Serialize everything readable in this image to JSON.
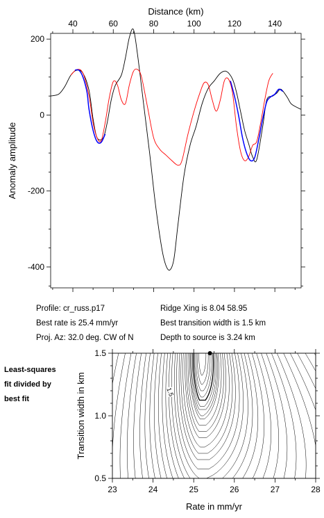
{
  "chart_data": [
    {
      "type": "line",
      "xlabel": "Distance (km)",
      "ylabel": "Anomaly amplitude",
      "xlim": [
        29,
        153
      ],
      "ylim": [
        -455,
        215
      ],
      "xticks": [
        40,
        60,
        80,
        100,
        120,
        140
      ],
      "yticks": [
        200,
        0,
        -200,
        -400
      ],
      "grid": false,
      "series": [
        {
          "color": "#000000",
          "points": [
            [
              29,
              50
            ],
            [
              33,
              55
            ],
            [
              36,
              75
            ],
            [
              39,
              105
            ],
            [
              42,
              118
            ],
            [
              45,
              110
            ],
            [
              48,
              65
            ],
            [
              50,
              -10
            ],
            [
              52,
              -60
            ],
            [
              55,
              -60
            ],
            [
              57,
              -20
            ],
            [
              59,
              40
            ],
            [
              61,
              78
            ],
            [
              64,
              105
            ],
            [
              66,
              150
            ],
            [
              68,
              205
            ],
            [
              70,
              225
            ],
            [
              72,
              160
            ],
            [
              75,
              30
            ],
            [
              78,
              -100
            ],
            [
              81,
              -240
            ],
            [
              84,
              -350
            ],
            [
              86,
              -395
            ],
            [
              88,
              -408
            ],
            [
              90,
              -380
            ],
            [
              92,
              -290
            ],
            [
              95,
              -160
            ],
            [
              98,
              -80
            ],
            [
              101,
              -30
            ],
            [
              104,
              30
            ],
            [
              107,
              70
            ],
            [
              110,
              90
            ],
            [
              113,
              110
            ],
            [
              116,
              115
            ],
            [
              119,
              95
            ],
            [
              121,
              60
            ],
            [
              123,
              10
            ],
            [
              125,
              -40
            ],
            [
              127,
              -75
            ],
            [
              129,
              -110
            ],
            [
              131,
              -118
            ],
            [
              134,
              -30
            ],
            [
              136,
              40
            ],
            [
              139,
              50
            ],
            [
              141,
              58
            ],
            [
              143,
              68
            ],
            [
              146,
              48
            ],
            [
              148,
              30
            ],
            [
              151,
              20
            ],
            [
              153,
              15
            ]
          ]
        },
        {
          "color": "#ff0000",
          "points": [
            [
              39,
              105
            ],
            [
              42,
              120
            ],
            [
              45,
              110
            ],
            [
              48,
              50
            ],
            [
              50,
              -20
            ],
            [
              52,
              -60
            ],
            [
              54,
              -68
            ],
            [
              56,
              -20
            ],
            [
              58,
              45
            ],
            [
              60,
              88
            ],
            [
              62,
              80
            ],
            [
              64,
              40
            ],
            [
              66,
              30
            ],
            [
              68,
              80
            ],
            [
              70,
              115
            ],
            [
              72,
              120
            ],
            [
              74,
              100
            ],
            [
              77,
              20
            ],
            [
              80,
              -60
            ],
            [
              83,
              -90
            ],
            [
              86,
              -105
            ],
            [
              89,
              -120
            ],
            [
              92,
              -132
            ],
            [
              94,
              -120
            ],
            [
              97,
              -50
            ],
            [
              100,
              10
            ],
            [
              103,
              60
            ],
            [
              105,
              85
            ],
            [
              107,
              80
            ],
            [
              109,
              40
            ],
            [
              111,
              10
            ],
            [
              113,
              40
            ],
            [
              115,
              90
            ],
            [
              117,
              95
            ],
            [
              119,
              60
            ],
            [
              121,
              -30
            ],
            [
              123,
              -95
            ],
            [
              125,
              -120
            ],
            [
              127,
              -110
            ],
            [
              129,
              -80
            ],
            [
              131,
              -70
            ],
            [
              133,
              -20
            ],
            [
              135,
              40
            ],
            [
              137,
              90
            ],
            [
              139,
              110
            ]
          ]
        },
        {
          "color": "#0000ff",
          "points": [
            [
              41,
              118
            ],
            [
              43,
              118
            ],
            [
              45,
              100
            ],
            [
              47,
              60
            ],
            [
              48,
              15
            ],
            [
              50,
              -40
            ],
            [
              52,
              -70
            ],
            [
              54,
              -72
            ],
            [
              56,
              -50
            ]
          ]
        },
        {
          "color": "#0000ff",
          "points": [
            [
              118,
              90
            ],
            [
              120,
              50
            ],
            [
              122,
              0
            ],
            [
              124,
              -60
            ],
            [
              126,
              -100
            ],
            [
              128,
              -120
            ],
            [
              130,
              -112
            ],
            [
              132,
              -65
            ],
            [
              134,
              -10
            ],
            [
              136,
              35
            ],
            [
              138,
              48
            ],
            [
              140,
              55
            ],
            [
              142,
              68
            ],
            [
              144,
              62
            ]
          ]
        }
      ]
    },
    {
      "type": "contour",
      "xlabel": "Rate in mm/yr",
      "ylabel": "Transition width in km",
      "xlim": [
        23,
        28
      ],
      "ylim": [
        0.5,
        1.5
      ],
      "xticks": [
        23,
        24,
        25,
        26,
        27,
        28
      ],
      "yticks": [
        0.5,
        1.0,
        1.5
      ],
      "grid": false,
      "best_fit_point": [
        25.4,
        1.5
      ],
      "contour_label": "1.5"
    }
  ],
  "info": {
    "profile": "Profile: cr_russ.p17",
    "best_rate": "Best rate is 25.4 mm/yr",
    "proj_az": "Proj. Az: 32.0 deg. CW of N",
    "ridge_xing": "Ridge Xing is 8.04 58.95",
    "best_width": "Best transition width is 1.5 km",
    "depth": "Depth to source is    3.24 km"
  },
  "side_note": [
    "Least-squares",
    "fit divided by",
    "best fit"
  ]
}
